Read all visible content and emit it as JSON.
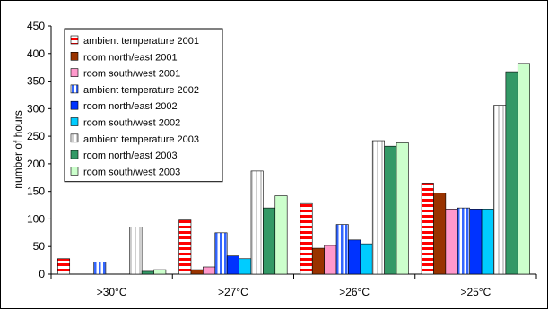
{
  "chart_data": {
    "type": "bar",
    "title": "",
    "xlabel": "",
    "ylabel": "number of hours",
    "ylim": [
      0,
      450
    ],
    "yticks": [
      0,
      50,
      100,
      150,
      200,
      250,
      300,
      350,
      400,
      450
    ],
    "categories": [
      ">30°C",
      ">27°C",
      ">26°C",
      ">25°C"
    ],
    "grid": false,
    "legend_position": "top-left",
    "series": [
      {
        "name": "ambient temperature 2001",
        "values": [
          28,
          98,
          128,
          165
        ],
        "color": "#ff0000",
        "pattern": "hstripe"
      },
      {
        "name": "room north/east 2001",
        "values": [
          0,
          8,
          47,
          147
        ],
        "color": "#993300",
        "pattern": "solid"
      },
      {
        "name": "room south/west 2001",
        "values": [
          0,
          13,
          52,
          118
        ],
        "color": "#ff99cc",
        "pattern": "solid"
      },
      {
        "name": "ambient temperature 2002",
        "values": [
          22,
          75,
          90,
          120
        ],
        "color": "#3366ff",
        "pattern": "vstripe"
      },
      {
        "name": "room north/east 2002",
        "values": [
          0,
          33,
          62,
          118
        ],
        "color": "#0033ff",
        "pattern": "solid"
      },
      {
        "name": "room south/west 2002",
        "values": [
          0,
          28,
          55,
          118
        ],
        "color": "#00ccff",
        "pattern": "solid"
      },
      {
        "name": "ambient temperature 2003",
        "values": [
          85,
          187,
          242,
          306
        ],
        "color": "#339966",
        "pattern": "diagstripe"
      },
      {
        "name": "room north/east 2003",
        "values": [
          5,
          120,
          232,
          367
        ],
        "color": "#339966",
        "pattern": "solid"
      },
      {
        "name": "room south/west 2003",
        "values": [
          8,
          142,
          238,
          382
        ],
        "color": "#ccffcc",
        "pattern": "solid"
      }
    ]
  }
}
